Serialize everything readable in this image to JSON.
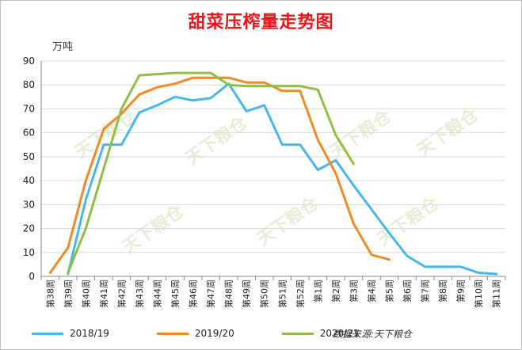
{
  "title": "甜菜压榨量走势图",
  "unit_label": "万吨",
  "source": "数据来源:天下粮仓",
  "watermark": "天下粮仓",
  "chart_data": {
    "type": "line",
    "title": "甜菜压榨量走势图",
    "ylabel": "万吨",
    "ylim": [
      0,
      90
    ],
    "yticks": [
      0,
      10,
      20,
      30,
      40,
      50,
      60,
      70,
      80,
      90
    ],
    "grid": true,
    "legend_position": "bottom",
    "categories": [
      "第38周",
      "第39周",
      "第40周",
      "第41周",
      "第42周",
      "第43周",
      "第44周",
      "第45周",
      "第46周",
      "第47周",
      "第48周",
      "第49周",
      "第50周",
      "第51周",
      "第52周",
      "第1周",
      "第2周",
      "第3周",
      "第4周",
      "第5周",
      "第6周",
      "第7周",
      "第8周",
      "第9周",
      "第10周",
      "第11周"
    ],
    "series": [
      {
        "name": "2018/19",
        "color": "#49b6eb",
        "values": [
          null,
          1,
          32,
          55,
          55,
          68.5,
          71.5,
          75,
          73.5,
          74.5,
          80.5,
          69,
          71.5,
          55,
          55,
          44.5,
          48.5,
          38,
          28,
          18,
          8.5,
          4,
          4,
          4,
          1.5,
          1
        ]
      },
      {
        "name": "2019/20",
        "color": "#f08a24",
        "values": [
          1.5,
          12,
          40,
          61.5,
          68,
          76,
          79,
          80.5,
          83,
          83,
          83,
          81,
          81,
          77.5,
          77.5,
          57,
          43,
          22,
          9,
          7,
          null,
          null,
          null,
          null,
          null,
          null
        ]
      },
      {
        "name": "2020/21",
        "color": "#8fbe43",
        "values": [
          null,
          1.5,
          20,
          45,
          70,
          84,
          84.5,
          85,
          85,
          85,
          80,
          79.5,
          79.5,
          79.5,
          79.5,
          78,
          59,
          47,
          null,
          null,
          null,
          null,
          null,
          null,
          null,
          null
        ]
      }
    ]
  }
}
